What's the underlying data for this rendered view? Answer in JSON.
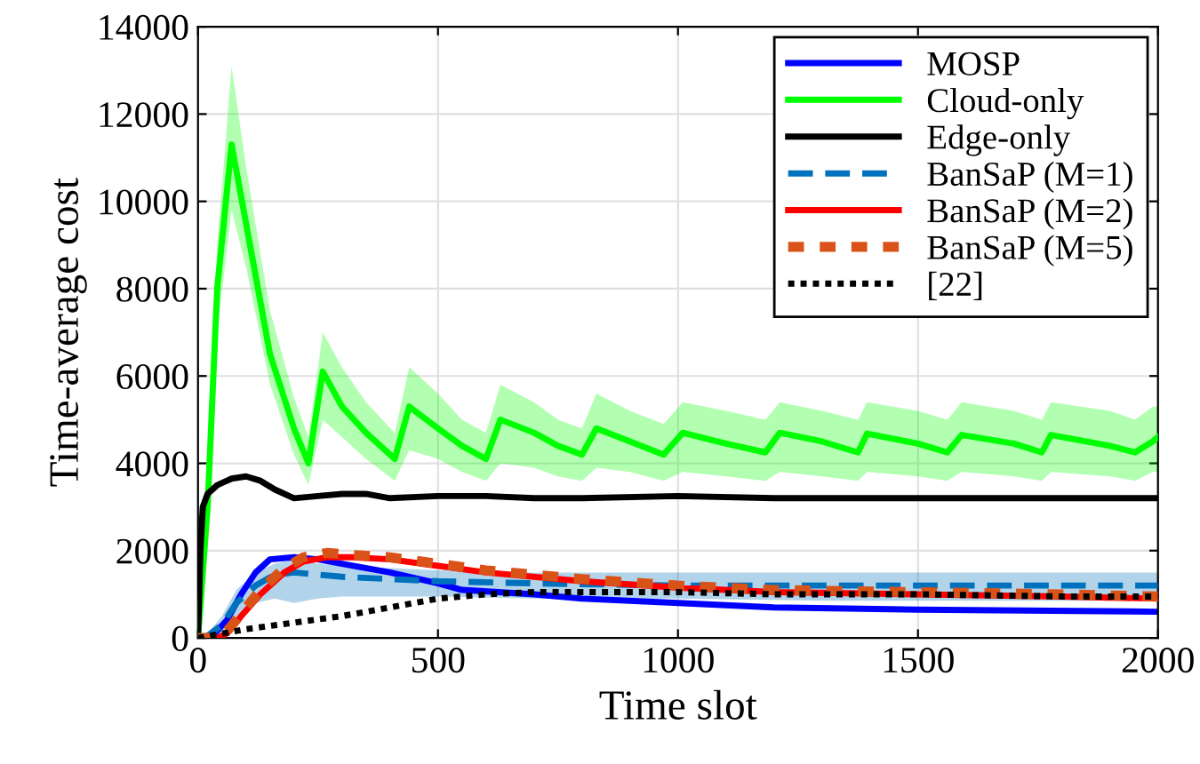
{
  "chart_data": {
    "type": "line",
    "xlabel": "Time slot",
    "ylabel": "Time-average cost",
    "xlim": [
      0,
      2000
    ],
    "ylim": [
      0,
      14000
    ],
    "xticks": [
      0,
      500,
      1000,
      1500,
      2000
    ],
    "yticks": [
      0,
      2000,
      4000,
      6000,
      8000,
      10000,
      12000,
      14000
    ],
    "grid": true,
    "legend": "top right",
    "marker": "none",
    "series": [
      {
        "name": "MOSP",
        "color": "#0000ff",
        "line_style": "solid",
        "x": [
          0,
          30,
          60,
          90,
          120,
          150,
          200,
          250,
          300,
          400,
          500,
          550,
          700,
          800,
          1000,
          1200,
          1500,
          2000
        ],
        "values": [
          0,
          50,
          400,
          1000,
          1500,
          1800,
          1850,
          1800,
          1700,
          1500,
          1250,
          1100,
          1000,
          900,
          800,
          700,
          650,
          600
        ]
      },
      {
        "name": "Cloud-only",
        "color": "#00ff00",
        "line_style": "solid",
        "x": [
          0,
          20,
          40,
          70,
          100,
          150,
          200,
          230,
          260,
          300,
          350,
          410,
          440,
          500,
          550,
          600,
          630,
          700,
          750,
          800,
          830,
          900,
          970,
          1010,
          1100,
          1182,
          1212,
          1300,
          1375,
          1394,
          1500,
          1561,
          1591,
          1700,
          1758,
          1777,
          1900,
          1952,
          1989,
          2000
        ],
        "values": [
          0,
          3000,
          8000,
          11300,
          9500,
          6500,
          4800,
          4000,
          6100,
          5300,
          4700,
          4100,
          5300,
          4800,
          4400,
          4100,
          5000,
          4700,
          4400,
          4200,
          4800,
          4500,
          4200,
          4700,
          4450,
          4250,
          4700,
          4500,
          4250,
          4680,
          4450,
          4250,
          4650,
          4450,
          4250,
          4650,
          4400,
          4250,
          4500,
          4600
        ],
        "lower": [
          0,
          2500,
          7000,
          9800,
          8500,
          5800,
          4200,
          3500,
          5000,
          4600,
          4100,
          3600,
          4300,
          4100,
          3800,
          3600,
          4000,
          3900,
          3700,
          3600,
          3900,
          3800,
          3600,
          3800,
          3700,
          3600,
          3800,
          3700,
          3600,
          3800,
          3700,
          3600,
          3800,
          3700,
          3600,
          3800,
          3700,
          3600,
          3800,
          3800
        ],
        "upper": [
          0,
          3500,
          9000,
          13100,
          10800,
          7500,
          5500,
          4600,
          7000,
          6200,
          5400,
          4700,
          6200,
          5600,
          5000,
          4700,
          5800,
          5400,
          5000,
          4800,
          5600,
          5200,
          4900,
          5400,
          5200,
          5000,
          5400,
          5200,
          5000,
          5400,
          5200,
          5000,
          5400,
          5200,
          5000,
          5400,
          5200,
          5000,
          5300,
          5300
        ]
      },
      {
        "name": "Edge-only",
        "color": "#000000",
        "line_style": "solid",
        "x": [
          0,
          5,
          10,
          20,
          40,
          70,
          100,
          130,
          160,
          200,
          250,
          300,
          350,
          400,
          500,
          600,
          700,
          800,
          1000,
          1200,
          1500,
          1800,
          2000
        ],
        "values": [
          0,
          2000,
          3000,
          3300,
          3500,
          3650,
          3700,
          3600,
          3400,
          3200,
          3250,
          3300,
          3300,
          3200,
          3250,
          3250,
          3200,
          3200,
          3250,
          3200,
          3200,
          3200,
          3200
        ]
      },
      {
        "name": "BanSaP (M=1)",
        "color": "#0072bd",
        "line_style": "dashed",
        "x": [
          0,
          20,
          50,
          80,
          120,
          160,
          200,
          250,
          300,
          400,
          500,
          700,
          1000,
          1300,
          1600,
          2000
        ],
        "values": [
          0,
          50,
          300,
          800,
          1200,
          1450,
          1500,
          1450,
          1400,
          1350,
          1300,
          1250,
          1200,
          1200,
          1200,
          1200
        ],
        "lower": [
          0,
          0,
          100,
          500,
          800,
          900,
          800,
          900,
          950,
          950,
          950,
          900,
          900,
          850,
          850,
          850
        ],
        "upper": [
          0,
          100,
          500,
          1100,
          1500,
          1700,
          1800,
          1700,
          1650,
          1600,
          1550,
          1500,
          1500,
          1500,
          1500,
          1500
        ]
      },
      {
        "name": "BanSaP (M=2)",
        "color": "#ff0000",
        "line_style": "solid",
        "x": [
          0,
          40,
          60,
          90,
          130,
          180,
          220,
          270,
          320,
          400,
          500,
          600,
          800,
          1000,
          1200,
          1500,
          1800,
          2000
        ],
        "values": [
          0,
          0,
          100,
          500,
          1000,
          1500,
          1750,
          1850,
          1850,
          1800,
          1650,
          1500,
          1300,
          1150,
          1050,
          1000,
          950,
          900
        ]
      },
      {
        "name": "BanSaP (M=5)",
        "color": "#d95319",
        "line_style": "densely_dashed",
        "x": [
          0,
          40,
          60,
          90,
          130,
          180,
          220,
          270,
          320,
          400,
          500,
          600,
          800,
          1000,
          1200,
          1500,
          1800,
          2000
        ],
        "values": [
          0,
          0,
          150,
          550,
          1100,
          1600,
          1850,
          1950,
          1900,
          1850,
          1700,
          1550,
          1350,
          1200,
          1100,
          1050,
          1000,
          950
        ]
      },
      {
        "name": "[22]",
        "color": "#000000",
        "line_style": "dotted",
        "x": [
          0,
          50,
          100,
          200,
          300,
          400,
          450,
          500,
          600,
          700,
          800,
          1000,
          1200,
          1500,
          1800,
          2000
        ],
        "values": [
          0,
          100,
          200,
          350,
          500,
          700,
          800,
          900,
          1000,
          1050,
          1050,
          1050,
          1000,
          1000,
          950,
          950
        ]
      }
    ]
  }
}
